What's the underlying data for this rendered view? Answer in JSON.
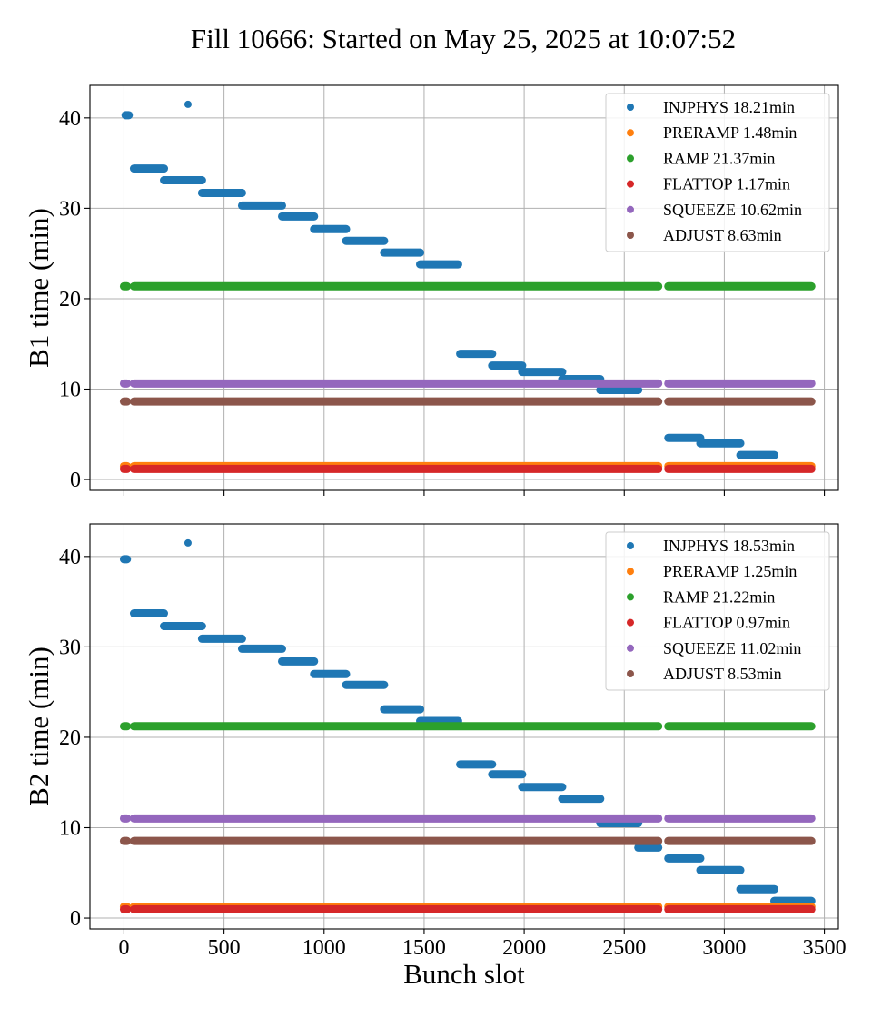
{
  "figure": {
    "title": "Fill 10666: Started on May 25, 2025 at 10:07:52"
  },
  "chart_data": [
    {
      "type": "scatter",
      "ylabel": "B1 time (min)",
      "xlabel": "",
      "xlim": [
        -170,
        3570
      ],
      "ylim": [
        -1.2,
        43.6
      ],
      "xticks": [
        0,
        500,
        1000,
        1500,
        2000,
        2500,
        3000,
        3500
      ],
      "show_xtick_labels": false,
      "yticks": [
        0,
        10,
        20,
        30,
        40
      ],
      "grid": true,
      "legend_position": "top-right",
      "series": [
        {
          "name": "INJPHYS 18.21min",
          "color": "#1f77b4",
          "segments": [
            [
              8,
              24,
              40.3
            ],
            [
              50,
              200,
              34.4
            ],
            [
              200,
              390,
              33.1
            ],
            [
              390,
              590,
              31.7
            ],
            [
              590,
              790,
              30.3
            ],
            [
              790,
              950,
              29.1
            ],
            [
              950,
              1110,
              27.7
            ],
            [
              1110,
              1300,
              26.4
            ],
            [
              1300,
              1480,
              25.1
            ],
            [
              1480,
              1670,
              23.8
            ],
            [
              1680,
              1840,
              13.9
            ],
            [
              1840,
              1990,
              12.6
            ],
            [
              1990,
              2190,
              11.9
            ],
            [
              2190,
              2380,
              11.1
            ],
            [
              2380,
              2570,
              9.9
            ],
            [
              2720,
              2880,
              4.6
            ],
            [
              2880,
              3080,
              4.0
            ],
            [
              3080,
              3250,
              2.7
            ]
          ],
          "points": [
            [
              320,
              41.5
            ]
          ]
        },
        {
          "name": "PRERAMP 1.48min",
          "color": "#ff7f0e",
          "segments": [
            [
              0,
              15,
              1.48
            ],
            [
              50,
              2670,
              1.48
            ],
            [
              2720,
              3435,
              1.48
            ]
          ],
          "points": []
        },
        {
          "name": "RAMP 21.37min",
          "color": "#2ca02c",
          "segments": [
            [
              0,
              15,
              21.37
            ],
            [
              50,
              2670,
              21.37
            ],
            [
              2720,
              3435,
              21.37
            ]
          ],
          "points": []
        },
        {
          "name": "FLATTOP 1.17min",
          "color": "#d62728",
          "segments": [
            [
              0,
              15,
              1.17
            ],
            [
              50,
              2670,
              1.17
            ],
            [
              2720,
              3435,
              1.17
            ]
          ],
          "points": []
        },
        {
          "name": "SQUEEZE 10.62min",
          "color": "#9467bd",
          "segments": [
            [
              0,
              15,
              10.62
            ],
            [
              50,
              2670,
              10.62
            ],
            [
              2720,
              3435,
              10.62
            ]
          ],
          "points": []
        },
        {
          "name": "ADJUST 8.63min",
          "color": "#8c564b",
          "segments": [
            [
              0,
              15,
              8.63
            ],
            [
              50,
              2670,
              8.63
            ],
            [
              2720,
              3435,
              8.63
            ]
          ],
          "points": []
        }
      ]
    },
    {
      "type": "scatter",
      "ylabel": "B2 time (min)",
      "xlabel": "Bunch slot",
      "xlim": [
        -170,
        3570
      ],
      "ylim": [
        -1.2,
        43.6
      ],
      "xticks": [
        0,
        500,
        1000,
        1500,
        2000,
        2500,
        3000,
        3500
      ],
      "show_xtick_labels": true,
      "yticks": [
        0,
        10,
        20,
        30,
        40
      ],
      "grid": true,
      "legend_position": "top-right",
      "series": [
        {
          "name": "INJPHYS 18.53min",
          "color": "#1f77b4",
          "segments": [
            [
              0,
              15,
              39.7
            ],
            [
              50,
              200,
              33.7
            ],
            [
              200,
              390,
              32.3
            ],
            [
              390,
              590,
              30.9
            ],
            [
              590,
              790,
              29.8
            ],
            [
              790,
              950,
              28.4
            ],
            [
              950,
              1110,
              27.0
            ],
            [
              1110,
              1300,
              25.8
            ],
            [
              1300,
              1480,
              23.1
            ],
            [
              1480,
              1670,
              21.8
            ],
            [
              1680,
              1840,
              17.0
            ],
            [
              1840,
              1990,
              15.9
            ],
            [
              1990,
              2190,
              14.5
            ],
            [
              2190,
              2380,
              13.2
            ],
            [
              2380,
              2570,
              10.5
            ],
            [
              2570,
              2670,
              7.8
            ],
            [
              2720,
              2880,
              6.6
            ],
            [
              2880,
              3080,
              5.3
            ],
            [
              3080,
              3250,
              3.2
            ],
            [
              3250,
              3435,
              1.9
            ]
          ],
          "points": [
            [
              320,
              41.5
            ]
          ]
        },
        {
          "name": "PRERAMP 1.25min",
          "color": "#ff7f0e",
          "segments": [
            [
              0,
              15,
              1.25
            ],
            [
              50,
              2670,
              1.25
            ],
            [
              2720,
              3435,
              1.25
            ]
          ],
          "points": []
        },
        {
          "name": "RAMP 21.22min",
          "color": "#2ca02c",
          "segments": [
            [
              0,
              15,
              21.22
            ],
            [
              50,
              2670,
              21.22
            ],
            [
              2720,
              3435,
              21.22
            ]
          ],
          "points": []
        },
        {
          "name": "FLATTOP 0.97min",
          "color": "#d62728",
          "segments": [
            [
              0,
              15,
              0.97
            ],
            [
              50,
              2670,
              0.97
            ],
            [
              2720,
              3435,
              0.97
            ]
          ],
          "points": []
        },
        {
          "name": "SQUEEZE 11.02min",
          "color": "#9467bd",
          "segments": [
            [
              0,
              15,
              11.02
            ],
            [
              50,
              2670,
              11.02
            ],
            [
              2720,
              3435,
              11.02
            ]
          ],
          "points": []
        },
        {
          "name": "ADJUST 8.53min",
          "color": "#8c564b",
          "segments": [
            [
              0,
              15,
              8.53
            ],
            [
              50,
              2670,
              8.53
            ],
            [
              2720,
              3435,
              8.53
            ]
          ],
          "points": []
        }
      ]
    }
  ]
}
